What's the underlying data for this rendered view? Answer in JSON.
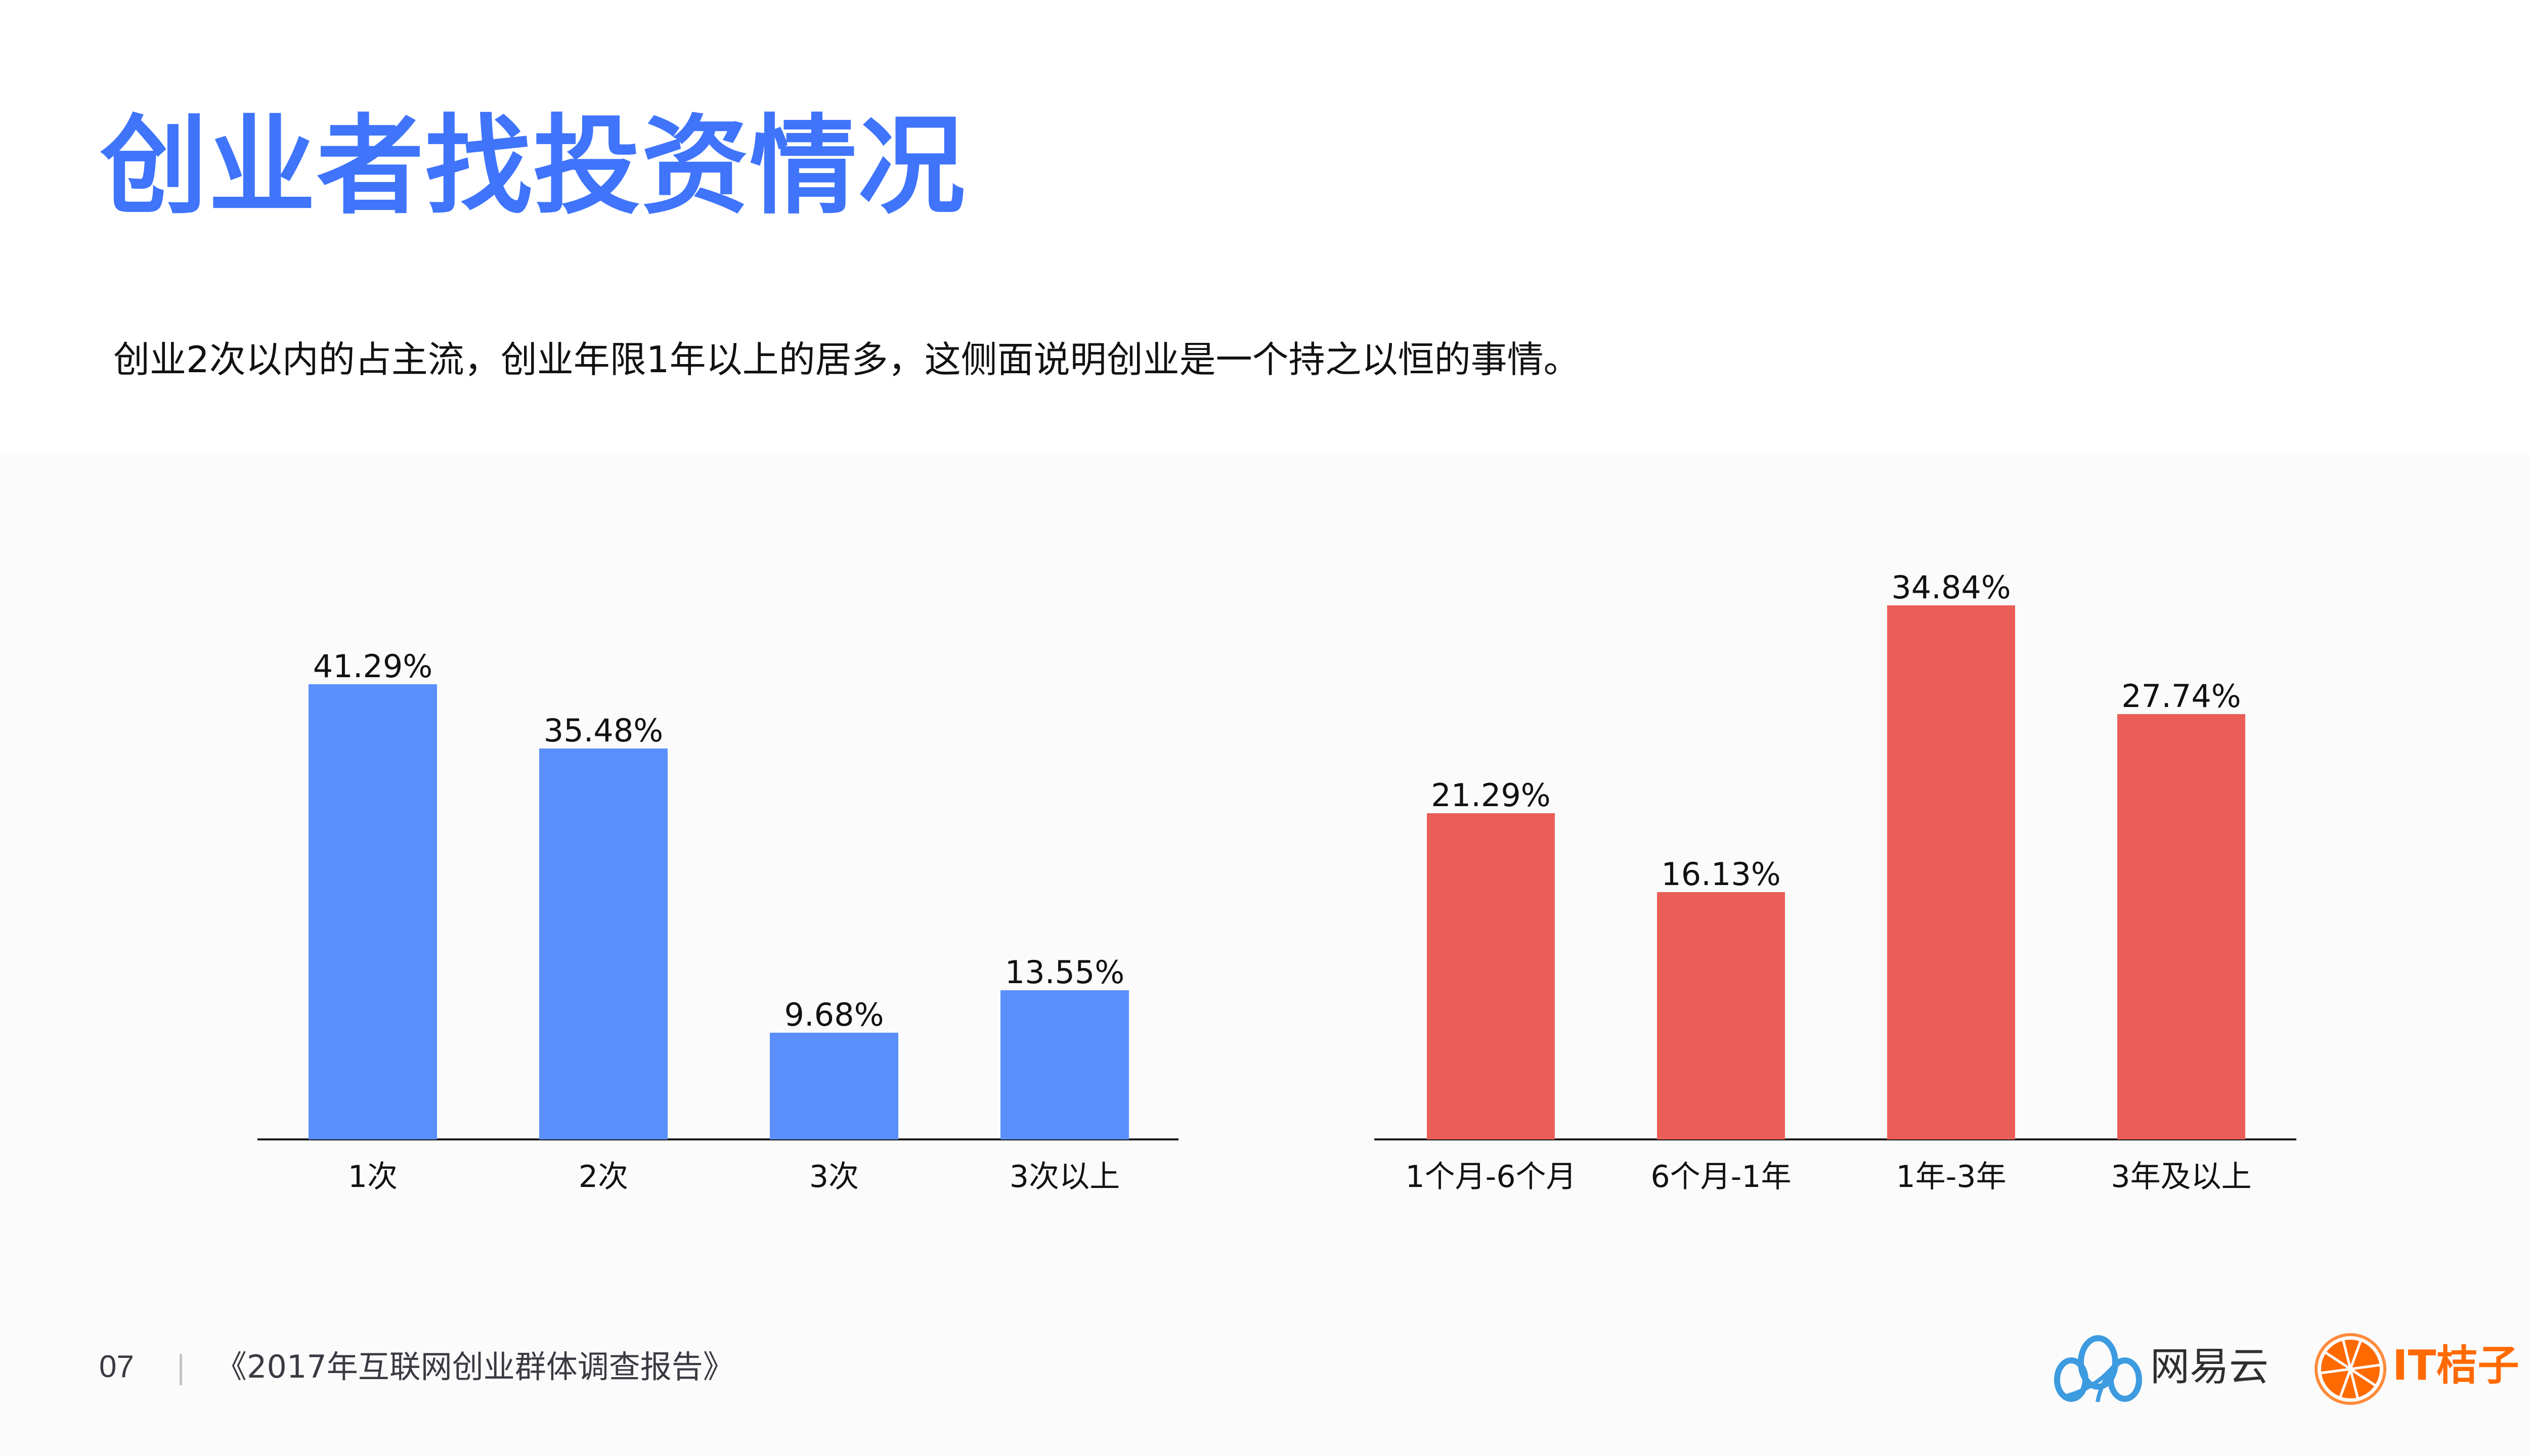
{
  "page": {
    "title": "创业者找投资情况",
    "subtitle": "创业2次以内的占主流，创业年限1年以上的居多，这侧面说明创业是一个持之以恒的事情。",
    "colors": {
      "title": "#3f74fb",
      "panel_background": "#fbfbfb",
      "left_bars": "#5a8ffc",
      "right_bars": "#eb5e58"
    }
  },
  "footer": {
    "page_number": "07",
    "report_title": "《2017年互联网创业群体调查报告》",
    "logos": [
      {
        "name": "网易云",
        "icon": "cloud-icon"
      },
      {
        "name": "IT桔子",
        "icon": "orange-slice-icon"
      }
    ]
  },
  "chart_data": [
    {
      "type": "bar",
      "title": "",
      "xlabel": "",
      "ylabel": "",
      "grid": false,
      "legend": null,
      "color": "#5a8ffc",
      "categories": [
        "1次",
        "2次",
        "3次",
        "3次以上"
      ],
      "values": [
        41.29,
        35.48,
        9.68,
        13.55
      ],
      "labels": [
        "41.29%",
        "35.48%",
        "9.68%",
        "13.55%"
      ],
      "unit": "%"
    },
    {
      "type": "bar",
      "title": "",
      "xlabel": "",
      "ylabel": "",
      "grid": false,
      "legend": null,
      "color": "#eb5e58",
      "categories": [
        "1个月-6个月",
        "6个月-1年",
        "1年-3年",
        "3年及以上"
      ],
      "values": [
        21.29,
        16.13,
        34.84,
        27.74
      ],
      "labels": [
        "21.29%",
        "16.13%",
        "34.84%",
        "27.74%"
      ],
      "unit": "%"
    }
  ]
}
